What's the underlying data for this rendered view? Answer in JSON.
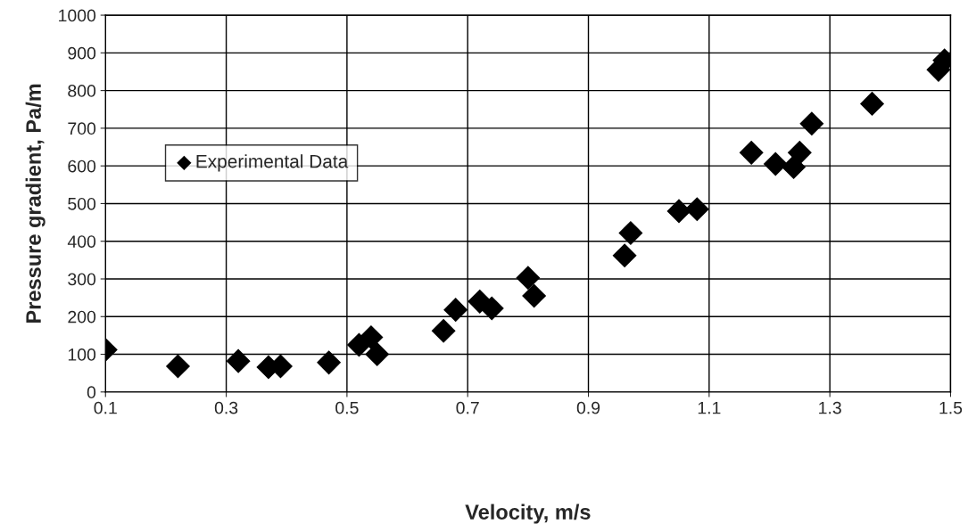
{
  "chart_data": {
    "type": "scatter",
    "xlabel": "Velocity, m/s",
    "ylabel": "Pressure gradient, Pa/m",
    "x": [
      0.1,
      0.22,
      0.32,
      0.37,
      0.39,
      0.47,
      0.52,
      0.54,
      0.55,
      0.66,
      0.68,
      0.72,
      0.74,
      0.8,
      0.81,
      0.96,
      0.97,
      1.05,
      1.08,
      1.17,
      1.21,
      1.24,
      1.25,
      1.27,
      1.37,
      1.48,
      1.49
    ],
    "series": [
      {
        "name": "Experimental Data",
        "color": "#000000",
        "values": [
          112,
          68,
          82,
          66,
          68,
          78,
          125,
          145,
          100,
          162,
          218,
          240,
          222,
          303,
          255,
          362,
          422,
          480,
          485,
          635,
          605,
          597,
          635,
          712,
          765,
          855,
          880
        ]
      }
    ],
    "xlim": [
      0.1,
      1.5
    ],
    "xticks": [
      0.1,
      0.3,
      0.5,
      0.7,
      0.9,
      1.1,
      1.3,
      1.5
    ],
    "ylim": [
      0,
      1000
    ],
    "yticks": [
      0,
      100,
      200,
      300,
      400,
      500,
      600,
      700,
      800,
      900,
      1000
    ],
    "grid": true,
    "legend": "top left",
    "marker": "diamond"
  }
}
